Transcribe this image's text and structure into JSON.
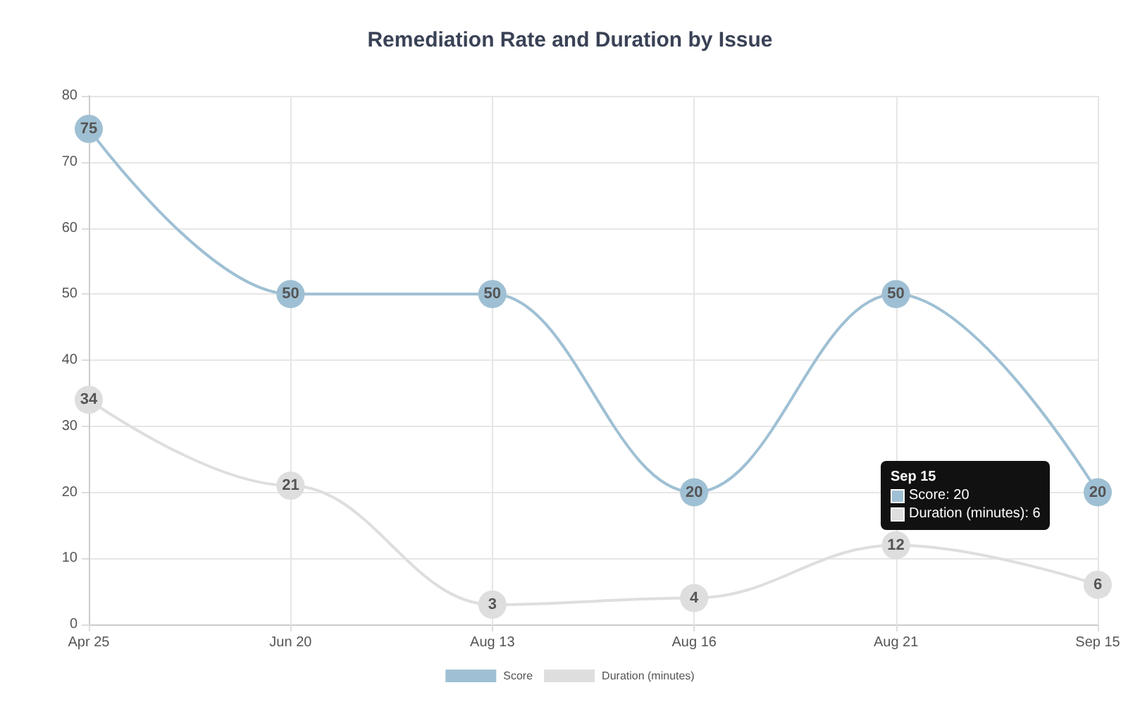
{
  "chart_data": {
    "type": "line",
    "title": "Remediation Rate and Duration by Issue",
    "categories": [
      "Apr 25",
      "Jun 20",
      "Aug 13",
      "Aug 16",
      "Aug 21",
      "Sep 15"
    ],
    "series": [
      {
        "name": "Score",
        "color": "#9fc0d4",
        "values": [
          75,
          50,
          50,
          20,
          50,
          20
        ]
      },
      {
        "name": "Duration (minutes)",
        "color": "#dedede",
        "values": [
          34,
          21,
          3,
          4,
          12,
          6
        ]
      }
    ],
    "ylim": [
      0,
      80
    ],
    "yticks": [
      0,
      10,
      20,
      30,
      40,
      50,
      60,
      70,
      80
    ],
    "grid": true,
    "legend": "bottom",
    "data_labels": true,
    "marker": "circle",
    "annotations": [
      "Sep 15",
      "Score: 20",
      "Duration (minutes): 6"
    ]
  }
}
